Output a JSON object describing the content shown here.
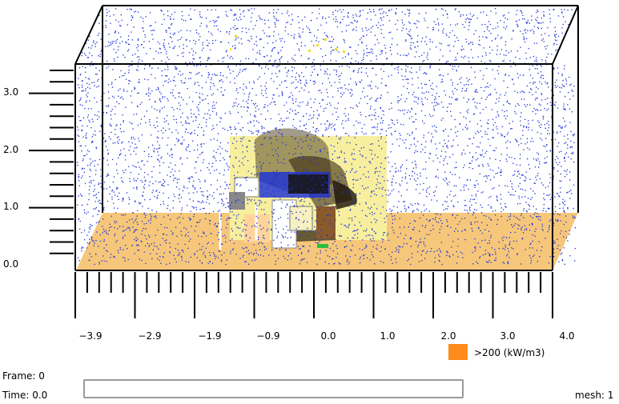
{
  "status": {
    "frame_label": "Frame: 0",
    "time_label": "Time: 0.0",
    "mesh_label": "mesh: 1",
    "time_progress": 0
  },
  "legend": {
    "label": ">200 (kW/m3)",
    "color": "#ff8c1a"
  },
  "axes": {
    "z_ticks": [
      "3.0",
      "2.0",
      "1.0",
      "0.0"
    ],
    "x_ticks": [
      "−3.9",
      "−2.9",
      "−1.9",
      "−0.9",
      "0.0",
      "1.0",
      "2.0",
      "3.0",
      "4.0"
    ]
  },
  "colors": {
    "floor": "#f6c77a",
    "smoke_particles": "#1a2ed6",
    "wall_panel": "#f7ef9e",
    "soot": "#3a2a12",
    "box_edges": "#000000"
  }
}
